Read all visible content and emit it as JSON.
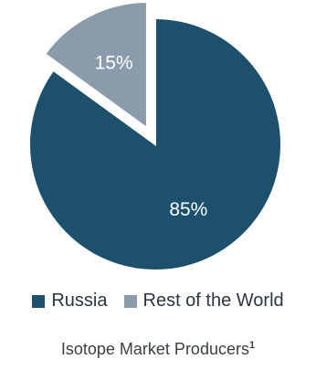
{
  "chart_data": {
    "type": "pie",
    "categories": [
      "Russia",
      "Rest of the World"
    ],
    "values": [
      85,
      15
    ],
    "value_labels": [
      "85%",
      "15%"
    ],
    "colors": [
      "#1d506d",
      "#8a9bab"
    ],
    "exploded": "Rest of the World",
    "legend_position": "bottom",
    "title": "Isotope Market Producers",
    "title_footnote": "1"
  }
}
